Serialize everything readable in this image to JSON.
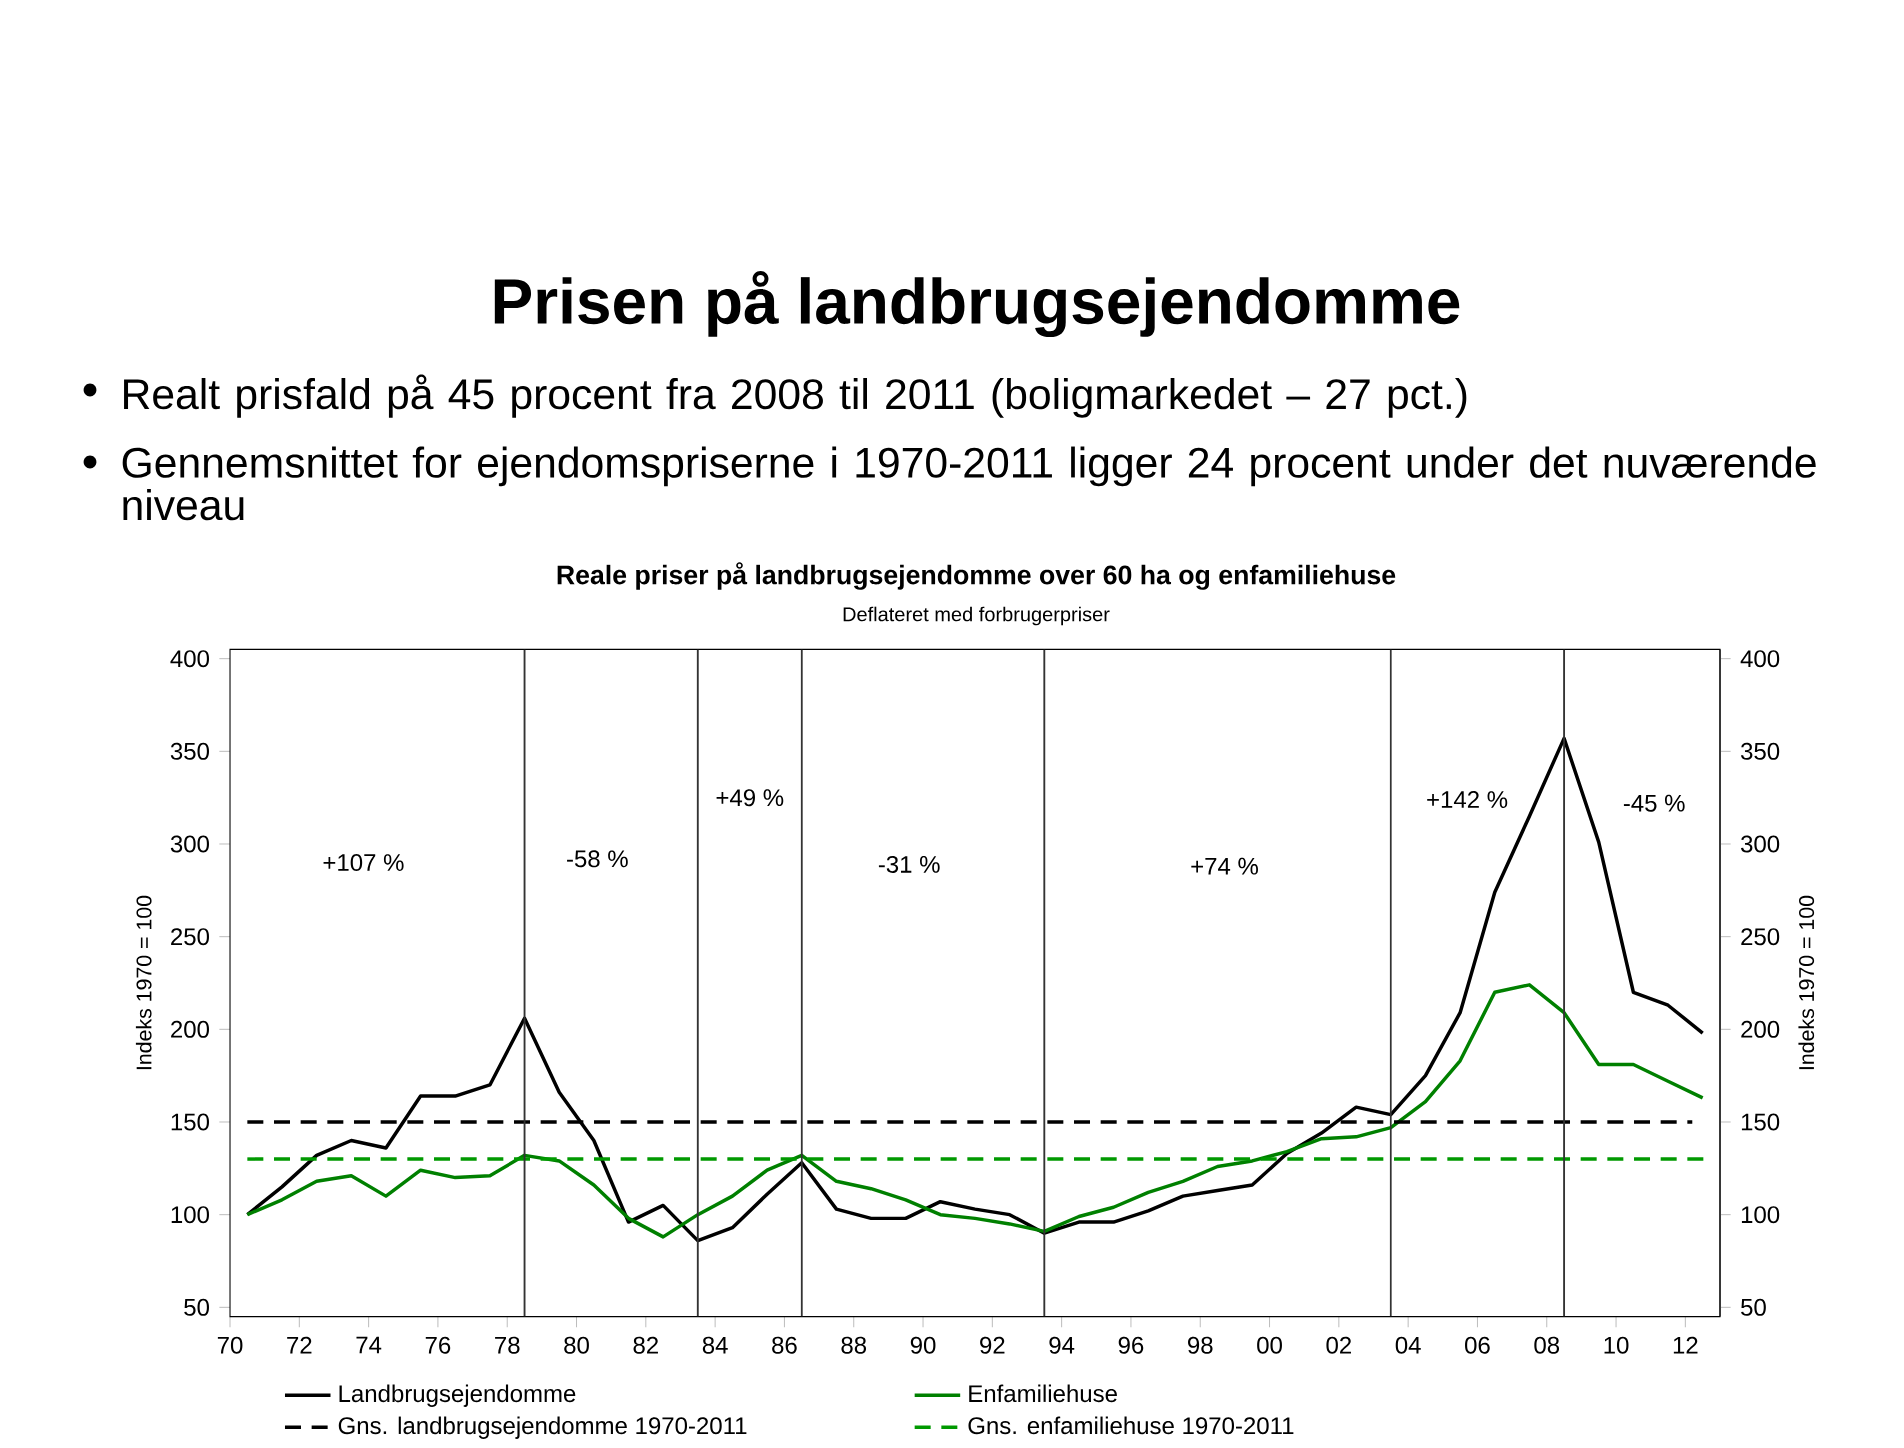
{
  "chart_data": {
    "type": "line",
    "title": "Prisen på landbrugsejendomme",
    "subtitle": "Reale priser på landbrugsejendomme over 60 ha og enfamiliehuse",
    "ylabel": "Indeks 1970 = 100",
    "y2label": "Indeks 1970 = 100",
    "annotations": [
      "Realt prisfald på 45 procent fra 2008 til 2011 (boligmarkedet – 27 pct.)",
      "Gennemsnittet for ejendomspriserne i 1970-2011 ligger 24 procent under det nuværende niveau",
      "Deflateret med forbrugerpriser",
      "+107 %",
      "-58 %",
      "+49 %",
      "-31 %",
      "+74 %",
      "+142 %",
      "-45 %"
    ],
    "x": [
      1970.5,
      1971.5,
      1972.5,
      1973.5,
      1974.5,
      1975.5,
      1976.5,
      1977.5,
      1978.5,
      1979.5,
      1980.5,
      1981.5,
      1982.5,
      1983.5,
      1984.5,
      1985.5,
      1986.5,
      1987.5,
      1988.5,
      1989.5,
      1990.5,
      1991.5,
      1992.5,
      1993.5,
      1994.5,
      1995.5,
      1996.5,
      1997.5,
      1998.5,
      1999.5,
      2000.5,
      2001.5,
      2002.5,
      2003.5,
      2004.5,
      2005.5,
      2006.5,
      2007.5,
      2008.5,
      2009.5,
      2010.5,
      2011.5,
      2012.5
    ],
    "series": [
      {
        "name": "Landbrugsejendomme",
        "color": "#000000",
        "line_style": "solid",
        "values": [
          100,
          115,
          132,
          140,
          136,
          164,
          164,
          170,
          206,
          166,
          140,
          96,
          105,
          86,
          93,
          111,
          128,
          103,
          98,
          98,
          107,
          103,
          100,
          90,
          96,
          96,
          102,
          110,
          113,
          116,
          133,
          144,
          158,
          154,
          175,
          209,
          274,
          315,
          357,
          301,
          220,
          213,
          198
        ]
      },
      {
        "name": "Enfamiliehuse",
        "color": "#008000",
        "line_style": "solid",
        "values": [
          100,
          108,
          118,
          121,
          110,
          124,
          120,
          121,
          132,
          129,
          116,
          98,
          88,
          100,
          110,
          124,
          132,
          118,
          114,
          108,
          100,
          98,
          95,
          91,
          99,
          104,
          112,
          118,
          126,
          129,
          134,
          141,
          142,
          147,
          161,
          183,
          220,
          224,
          209,
          181,
          181,
          172,
          163
        ]
      },
      {
        "name": "Gns. landbrugsejendomme 1970-2011",
        "color": "#000000",
        "line_style": "dashed",
        "x": [
          1970.5,
          2012.2
        ],
        "values": [
          150,
          150
        ]
      },
      {
        "name": "Gns. enfamiliehuse 1970-2011",
        "color": "#009900",
        "line_style": "dashed",
        "x": [
          1970.5,
          2012.6
        ],
        "values": [
          130,
          130
        ]
      }
    ],
    "xlim": [
      1970,
      2013
    ],
    "ylim": [
      45,
      405
    ],
    "y2lim": [
      45,
      405
    ],
    "xticks": [
      {
        "value": 1970,
        "label": "70"
      },
      {
        "value": 1972,
        "label": "72"
      },
      {
        "value": 1974,
        "label": "74"
      },
      {
        "value": 1976,
        "label": "76"
      },
      {
        "value": 1978,
        "label": "78"
      },
      {
        "value": 1980,
        "label": "80"
      },
      {
        "value": 1982,
        "label": "82"
      },
      {
        "value": 1984,
        "label": "84"
      },
      {
        "value": 1986,
        "label": "86"
      },
      {
        "value": 1988,
        "label": "88"
      },
      {
        "value": 1990,
        "label": "90"
      },
      {
        "value": 1992,
        "label": "92"
      },
      {
        "value": 1994,
        "label": "94"
      },
      {
        "value": 1996,
        "label": "96"
      },
      {
        "value": 1998,
        "label": "98"
      },
      {
        "value": 2000,
        "label": "00"
      },
      {
        "value": 2002,
        "label": "02"
      },
      {
        "value": 2004,
        "label": "04"
      },
      {
        "value": 2006,
        "label": "06"
      },
      {
        "value": 2008,
        "label": "08"
      },
      {
        "value": 2010,
        "label": "10"
      },
      {
        "value": 2012,
        "label": "12"
      }
    ],
    "yticks": [
      50,
      100,
      150,
      200,
      250,
      300,
      350,
      400
    ],
    "y2ticks": [
      50,
      100,
      150,
      200,
      250,
      300,
      350,
      400
    ],
    "ref_lines": [
      {
        "axis": "x",
        "value": 1978.5,
        "color": "#333333"
      },
      {
        "axis": "x",
        "value": 1983.5,
        "color": "#333333"
      },
      {
        "axis": "x",
        "value": 1986.5,
        "color": "#333333"
      },
      {
        "axis": "x",
        "value": 1993.5,
        "color": "#333333"
      },
      {
        "axis": "x",
        "value": 2003.5,
        "color": "#333333"
      },
      {
        "axis": "x",
        "value": 2008.5,
        "color": "#333333"
      }
    ],
    "legend": "bottom",
    "marker": "none",
    "grid": false
  }
}
